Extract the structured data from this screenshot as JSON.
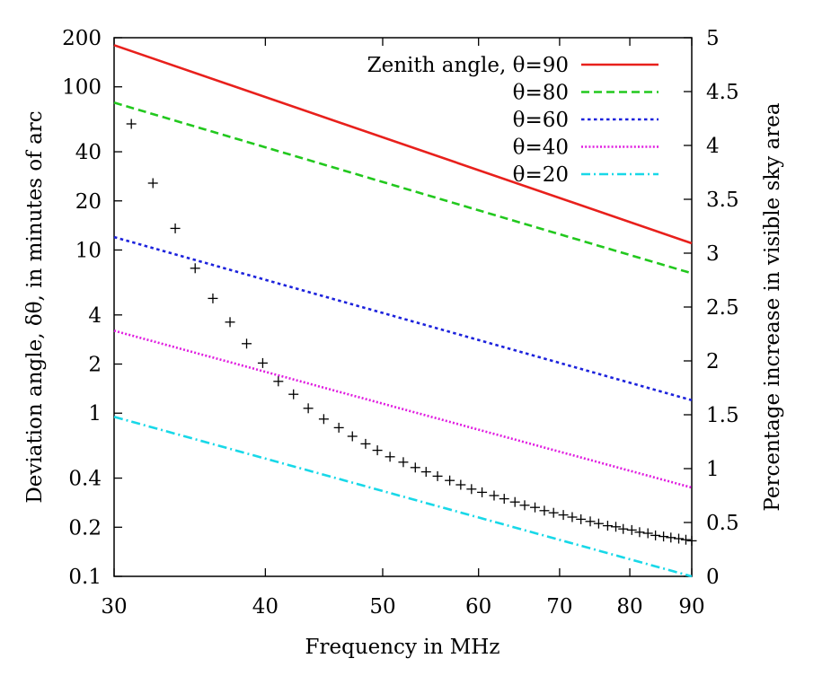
{
  "chart_data": {
    "type": "line",
    "xlabel": "Frequency in MHz",
    "ylabel": "Deviation angle, δθ, in minutes of arc",
    "y2label": "Percentage increase in visible sky area",
    "xscale": "log",
    "yscale": "log",
    "xlim": [
      30,
      90
    ],
    "ylim": [
      0.1,
      200
    ],
    "y2lim": [
      0,
      5
    ],
    "x_ticks": [
      30,
      40,
      50,
      60,
      70,
      80,
      90
    ],
    "y_ticks": [
      0.1,
      0.2,
      0.4,
      1,
      2,
      4,
      10,
      20,
      40,
      100,
      200
    ],
    "y2_ticks": [
      0,
      0.5,
      1,
      1.5,
      2,
      2.5,
      3,
      3.5,
      4,
      4.5,
      5
    ],
    "legend_position": "top-right",
    "series": [
      {
        "name": "Zenith angle, θ=90",
        "color": "#e8201c",
        "style": "solid",
        "x": [
          30,
          90
        ],
        "y": [
          180,
          11
        ]
      },
      {
        "name": "θ=80",
        "color": "#22c81e",
        "style": "dashed",
        "x": [
          30,
          90
        ],
        "y": [
          80,
          7.2
        ]
      },
      {
        "name": "θ=60",
        "color": "#1c22dc",
        "style": "dotted",
        "x": [
          30,
          90
        ],
        "y": [
          12,
          1.2
        ]
      },
      {
        "name": "θ=40",
        "color": "#e01ce0",
        "style": "dotted-fine",
        "x": [
          30,
          90
        ],
        "y": [
          3.2,
          0.35
        ]
      },
      {
        "name": "θ=20",
        "color": "#18d8e8",
        "style": "dash-dot",
        "x": [
          30,
          90
        ],
        "y": [
          0.95,
          0.1
        ]
      }
    ],
    "scatter": {
      "axis": "y2",
      "marker": "plus",
      "color": "#000000",
      "x": [
        31,
        32.3,
        33.7,
        35,
        36.2,
        37.4,
        38.6,
        39.8,
        41,
        42.2,
        43.4,
        44.7,
        46,
        47.2,
        48.4,
        49.5,
        50.7,
        52,
        53.2,
        54.3,
        55.5,
        56.8,
        58,
        59.2,
        60.4,
        61.8,
        63,
        64.3,
        65.5,
        66.8,
        68,
        69.2,
        70.5,
        71.7,
        72.9,
        74.2,
        75.4,
        76.7,
        77.9,
        79,
        80.3,
        81.5,
        82.8,
        84,
        85.3,
        86.5,
        87.8,
        89,
        90
      ],
      "y": [
        4.2,
        3.65,
        3.23,
        2.86,
        2.58,
        2.36,
        2.16,
        1.98,
        1.81,
        1.69,
        1.56,
        1.46,
        1.38,
        1.3,
        1.23,
        1.17,
        1.11,
        1.06,
        1.01,
        0.97,
        0.93,
        0.89,
        0.85,
        0.81,
        0.78,
        0.75,
        0.72,
        0.69,
        0.66,
        0.64,
        0.61,
        0.59,
        0.57,
        0.55,
        0.53,
        0.51,
        0.49,
        0.47,
        0.46,
        0.44,
        0.43,
        0.41,
        0.4,
        0.38,
        0.37,
        0.36,
        0.35,
        0.34,
        0.33
      ]
    }
  }
}
